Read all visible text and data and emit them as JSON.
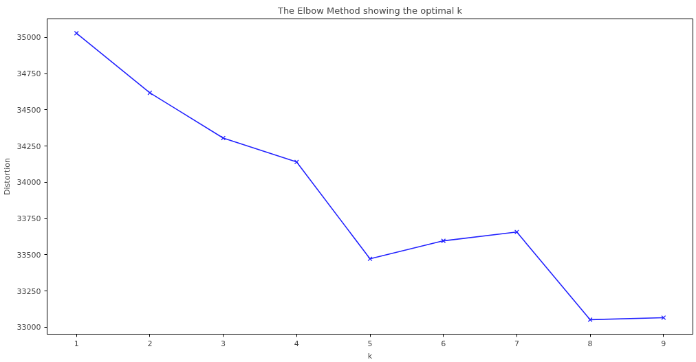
{
  "chart_data": {
    "type": "line",
    "title": "The Elbow Method showing the optimal k",
    "xlabel": "k",
    "ylabel": "Distortion",
    "x": [
      1,
      2,
      3,
      4,
      5,
      6,
      7,
      8,
      9
    ],
    "series": [
      {
        "color": "#2222ff",
        "values": [
          35028,
          34617,
          34305,
          34140,
          33472,
          33596,
          33657,
          33052,
          33066
        ]
      }
    ],
    "xlim": [
      0.6,
      9.4
    ],
    "xticks": [
      1,
      2,
      3,
      4,
      5,
      6,
      7,
      8,
      9
    ],
    "ylim": [
      32952,
      35127
    ],
    "yticks": [
      33000,
      33250,
      33500,
      33750,
      34000,
      34250,
      34500,
      34750,
      35000
    ],
    "marker": "cross",
    "line_style": "solid",
    "grid": false
  }
}
